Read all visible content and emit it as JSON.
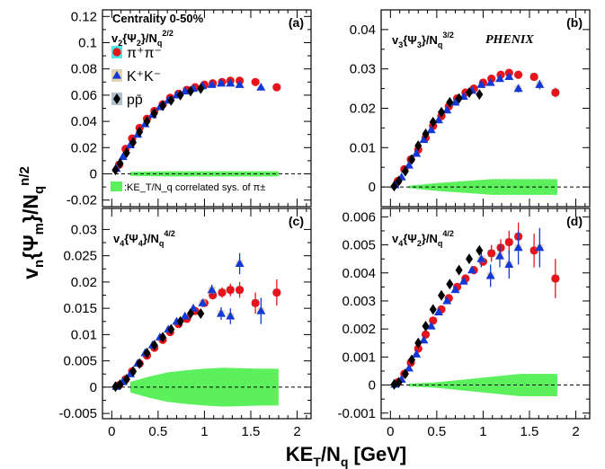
{
  "figure": {
    "ylabel": "vn{Ψm}/Nq^{n/2}",
    "xlabel": "KE_T/N_q [GeV]",
    "experiment": "PHENIX",
    "centrality": "Centrality 0-50%",
    "legend": [
      {
        "name": "π⁺π⁻",
        "marker": "circle",
        "color": "#e8141b"
      },
      {
        "name": "K⁺K⁻",
        "marker": "triangle",
        "color": "#1238d6"
      },
      {
        "name": "pp̄",
        "marker": "diamond",
        "color": "#000000"
      }
    ],
    "sys_label": ":KE_T/N_q correlated sys. of π±",
    "colors": {
      "pion": "#e8141b",
      "kaon": "#1238d6",
      "proton": "#000000",
      "band": "#5cf05c",
      "syspion": "#00dddd",
      "syskaon": "#d8c090",
      "sysproton": "#8ea6b8"
    }
  },
  "chart_data": [
    {
      "type": "scatter",
      "panel": "(a)",
      "title": "v2{Ψ2}/Nq^{2/2}",
      "xlim": [
        -0.1,
        2.15
      ],
      "ylim": [
        -0.025,
        0.125
      ],
      "yticks": [
        -0.02,
        0,
        0.02,
        0.04,
        0.06,
        0.08,
        0.1,
        0.12
      ],
      "ytick_labels": [
        "-0.02",
        "0",
        "0.02",
        "0.04",
        "0.06",
        "0.08",
        "0.1",
        "0.12"
      ],
      "xticks": [
        0,
        0.5,
        1,
        1.5,
        2
      ],
      "xtick_labels": [],
      "series": [
        {
          "name": "π⁺π⁻",
          "x": [
            0.08,
            0.15,
            0.22,
            0.3,
            0.38,
            0.46,
            0.55,
            0.63,
            0.72,
            0.81,
            0.9,
            1.0,
            1.09,
            1.19,
            1.28,
            1.38,
            1.55,
            1.78
          ],
          "y": [
            0.007,
            0.019,
            0.027,
            0.035,
            0.042,
            0.048,
            0.053,
            0.058,
            0.061,
            0.064,
            0.066,
            0.068,
            0.069,
            0.07,
            0.071,
            0.071,
            0.07,
            0.066
          ],
          "err": []
        },
        {
          "name": "K⁺K⁻",
          "x": [
            0.05,
            0.12,
            0.2,
            0.28,
            0.36,
            0.44,
            0.52,
            0.61,
            0.7,
            0.79,
            0.88,
            0.98,
            1.08,
            1.18,
            1.28,
            1.38,
            1.61
          ],
          "y": [
            0.004,
            0.013,
            0.022,
            0.03,
            0.038,
            0.045,
            0.051,
            0.056,
            0.06,
            0.063,
            0.065,
            0.067,
            0.068,
            0.069,
            0.069,
            0.068,
            0.066
          ],
          "err": []
        },
        {
          "name": "pp̄",
          "x": [
            0.04,
            0.09,
            0.16,
            0.23,
            0.3,
            0.38,
            0.46,
            0.55,
            0.64,
            0.74,
            0.85,
            0.96
          ],
          "y": [
            0.003,
            0.008,
            0.016,
            0.024,
            0.032,
            0.04,
            0.046,
            0.052,
            0.056,
            0.06,
            0.063,
            0.065
          ],
          "err": []
        }
      ],
      "band": {
        "x": [
          0.2,
          0.6,
          1.0,
          1.4,
          1.8
        ],
        "upper": [
          0.0015,
          0.002,
          0.002,
          0.002,
          0.002
        ],
        "lower": [
          -0.0015,
          -0.002,
          -0.002,
          -0.002,
          -0.002
        ]
      },
      "show_sys_legend": true
    },
    {
      "type": "scatter",
      "panel": "(b)",
      "title": "v3{Ψ3}/Nq^{3/2}",
      "xlim": [
        -0.1,
        2.15
      ],
      "ylim": [
        -0.005,
        0.045
      ],
      "yticks": [
        0,
        0.01,
        0.02,
        0.03,
        0.04
      ],
      "ytick_labels": [
        "0",
        "0.01",
        "0.02",
        "0.03",
        "0.04"
      ],
      "xticks": [
        0,
        0.5,
        1,
        1.5,
        2
      ],
      "xtick_labels": [],
      "series": [
        {
          "name": "π⁺π⁻",
          "x": [
            0.08,
            0.15,
            0.22,
            0.3,
            0.38,
            0.46,
            0.55,
            0.63,
            0.72,
            0.81,
            0.9,
            1.0,
            1.09,
            1.19,
            1.28,
            1.38,
            1.55,
            1.78
          ],
          "y": [
            0.0015,
            0.0045,
            0.007,
            0.0095,
            0.0125,
            0.0155,
            0.018,
            0.0205,
            0.0225,
            0.024,
            0.025,
            0.0265,
            0.0275,
            0.0285,
            0.029,
            0.0285,
            0.028,
            0.024
          ],
          "err": [
            0,
            0,
            0,
            0,
            0,
            0,
            0,
            0,
            0,
            0,
            0,
            0,
            0,
            0,
            0,
            0,
            0.001,
            0.0012
          ]
        },
        {
          "name": "K⁺K⁻",
          "x": [
            0.05,
            0.12,
            0.2,
            0.28,
            0.36,
            0.44,
            0.52,
            0.61,
            0.7,
            0.79,
            0.88,
            0.98,
            1.08,
            1.18,
            1.28,
            1.38,
            1.61
          ],
          "y": [
            0.0005,
            0.0025,
            0.0055,
            0.0085,
            0.012,
            0.0145,
            0.017,
            0.0195,
            0.0215,
            0.023,
            0.0245,
            0.026,
            0.0265,
            0.0275,
            0.028,
            0.025,
            0.026
          ],
          "err": [
            0,
            0,
            0,
            0,
            0,
            0,
            0,
            0,
            0,
            0,
            0,
            0,
            0,
            0,
            0,
            0.001,
            0.0012
          ]
        },
        {
          "name": "pp̄",
          "x": [
            0.04,
            0.09,
            0.16,
            0.23,
            0.3,
            0.38,
            0.46,
            0.55,
            0.64,
            0.74,
            0.85,
            0.96
          ],
          "y": [
            0.0002,
            0.0015,
            0.004,
            0.007,
            0.0105,
            0.0135,
            0.0165,
            0.019,
            0.0215,
            0.0225,
            0.024,
            0.0235
          ],
          "err": []
        }
      ],
      "band": {
        "x": [
          0.2,
          0.5,
          0.8,
          1.1,
          1.4,
          1.8
        ],
        "upper": [
          0.0003,
          0.001,
          0.0015,
          0.002,
          0.002,
          0.002
        ],
        "lower": [
          -0.0003,
          -0.001,
          -0.0015,
          -0.002,
          -0.002,
          -0.002
        ]
      },
      "show_sys_legend": false
    },
    {
      "type": "scatter",
      "panel": "(c)",
      "title": "v4{Ψ4}/Nq^{4/2}",
      "xlim": [
        -0.1,
        2.15
      ],
      "ylim": [
        -0.006,
        0.034
      ],
      "yticks": [
        -0.005,
        0,
        0.005,
        0.01,
        0.015,
        0.02,
        0.025,
        0.03
      ],
      "ytick_labels": [
        "-0.005",
        "0",
        "0.005",
        "0.01",
        "0.015",
        "0.02",
        "0.025",
        "0.03"
      ],
      "xticks": [
        0,
        0.5,
        1,
        1.5,
        2
      ],
      "xtick_labels": [
        "0",
        "0.5",
        "1",
        "1.5",
        "2"
      ],
      "series": [
        {
          "name": "π⁺π⁻",
          "x": [
            0.08,
            0.15,
            0.22,
            0.3,
            0.38,
            0.46,
            0.55,
            0.63,
            0.72,
            0.81,
            0.9,
            1.0,
            1.09,
            1.19,
            1.28,
            1.38,
            1.55,
            1.78
          ],
          "y": [
            0.0004,
            0.0015,
            0.003,
            0.0045,
            0.006,
            0.0075,
            0.009,
            0.0105,
            0.012,
            0.013,
            0.0145,
            0.016,
            0.0175,
            0.018,
            0.0185,
            0.0185,
            0.016,
            0.018
          ],
          "err": [
            0,
            0,
            0,
            0,
            0,
            0,
            0,
            0,
            0,
            0,
            0,
            0,
            0.0008,
            0.001,
            0.0012,
            0.0015,
            0.002,
            0.0025
          ]
        },
        {
          "name": "K⁺K⁻",
          "x": [
            0.05,
            0.12,
            0.2,
            0.28,
            0.36,
            0.44,
            0.52,
            0.61,
            0.7,
            0.79,
            0.88,
            0.98,
            1.08,
            1.18,
            1.28,
            1.38,
            1.61
          ],
          "y": [
            0.0001,
            0.001,
            0.0025,
            0.0045,
            0.0065,
            0.008,
            0.0095,
            0.011,
            0.0125,
            0.0135,
            0.015,
            0.016,
            0.0185,
            0.014,
            0.0135,
            0.0235,
            0.0145
          ],
          "err": [
            0,
            0,
            0,
            0,
            0,
            0,
            0,
            0,
            0,
            0,
            0,
            0.0008,
            0.001,
            0.0012,
            0.0015,
            0.002,
            0.0025
          ]
        },
        {
          "name": "pp̄",
          "x": [
            0.04,
            0.09,
            0.16,
            0.23,
            0.3,
            0.38,
            0.46,
            0.55,
            0.64,
            0.74,
            0.85,
            0.96
          ],
          "y": [
            0.0001,
            0.0005,
            0.0015,
            0.003,
            0.0045,
            0.0065,
            0.008,
            0.0095,
            0.011,
            0.0125,
            0.014,
            0.014
          ],
          "err": []
        }
      ],
      "band": {
        "x": [
          0.2,
          0.4,
          0.6,
          0.8,
          1.0,
          1.2,
          1.4,
          1.6,
          1.8
        ],
        "upper": [
          0.001,
          0.002,
          0.0028,
          0.0032,
          0.0035,
          0.0037,
          0.0036,
          0.0035,
          0.0035
        ],
        "lower": [
          -0.001,
          -0.002,
          -0.0028,
          -0.0032,
          -0.0035,
          -0.0037,
          -0.0036,
          -0.0035,
          -0.0035
        ]
      },
      "show_sys_legend": false
    },
    {
      "type": "scatter",
      "panel": "(d)",
      "title": "v4{Ψ2}/Nq^{4/2}",
      "xlim": [
        -0.1,
        2.15
      ],
      "ylim": [
        -0.0012,
        0.0063
      ],
      "yticks": [
        -0.001,
        0,
        0.001,
        0.002,
        0.003,
        0.004,
        0.005,
        0.006
      ],
      "ytick_labels": [
        "-0.001",
        "0",
        "0.001",
        "0.002",
        "0.003",
        "0.004",
        "0.005",
        "0.006"
      ],
      "xticks": [
        0,
        0.5,
        1,
        1.5,
        2
      ],
      "xtick_labels": [
        "0",
        "0.5",
        "1",
        "1.5",
        "2"
      ],
      "series": [
        {
          "name": "π⁺π⁻",
          "x": [
            0.08,
            0.15,
            0.22,
            0.3,
            0.38,
            0.46,
            0.55,
            0.63,
            0.72,
            0.81,
            0.9,
            1.0,
            1.09,
            1.19,
            1.28,
            1.38,
            1.55,
            1.78
          ],
          "y": [
            0.0001,
            0.0004,
            0.0008,
            0.0013,
            0.0018,
            0.0023,
            0.0027,
            0.0031,
            0.0035,
            0.0038,
            0.0041,
            0.0044,
            0.0047,
            0.0049,
            0.0051,
            0.0053,
            0.0048,
            0.0038
          ],
          "err": [
            0,
            0,
            0,
            0,
            0,
            0,
            0,
            0,
            0,
            0,
            0,
            0,
            0.0003,
            0.0003,
            0.0004,
            0.0005,
            0.0006,
            0.0007
          ]
        },
        {
          "name": "K⁺K⁻",
          "x": [
            0.05,
            0.12,
            0.2,
            0.28,
            0.36,
            0.44,
            0.52,
            0.61,
            0.7,
            0.79,
            0.88,
            0.98,
            1.08,
            1.18,
            1.28,
            1.38,
            1.61
          ],
          "y": [
            2e-05,
            0.0002,
            0.0006,
            0.0011,
            0.0016,
            0.0021,
            0.0026,
            0.003,
            0.0034,
            0.0037,
            0.0041,
            0.0045,
            0.0039,
            0.0046,
            0.0043,
            0.0049,
            0.0049
          ],
          "err": [
            0,
            0,
            0,
            0,
            0,
            0,
            0,
            0,
            0,
            0,
            0,
            0.0003,
            0.0004,
            0.0004,
            0.0005,
            0.0006,
            0.0007
          ]
        },
        {
          "name": "pp̄",
          "x": [
            0.04,
            0.09,
            0.16,
            0.23,
            0.3,
            0.38,
            0.46,
            0.55,
            0.64,
            0.74,
            0.85,
            0.96
          ],
          "y": [
            2e-05,
            0.0001,
            0.0004,
            0.0009,
            0.0015,
            0.0021,
            0.0027,
            0.0032,
            0.0036,
            0.0041,
            0.0045,
            0.0048
          ],
          "err": []
        }
      ],
      "band": {
        "x": [
          0.2,
          0.5,
          0.8,
          1.1,
          1.4,
          1.8
        ],
        "upper": [
          5e-05,
          0.0001,
          0.0002,
          0.0003,
          0.0004,
          0.0004
        ],
        "lower": [
          -5e-05,
          -0.0001,
          -0.0002,
          -0.0003,
          -0.0004,
          -0.0004
        ]
      },
      "show_sys_legend": false
    }
  ]
}
